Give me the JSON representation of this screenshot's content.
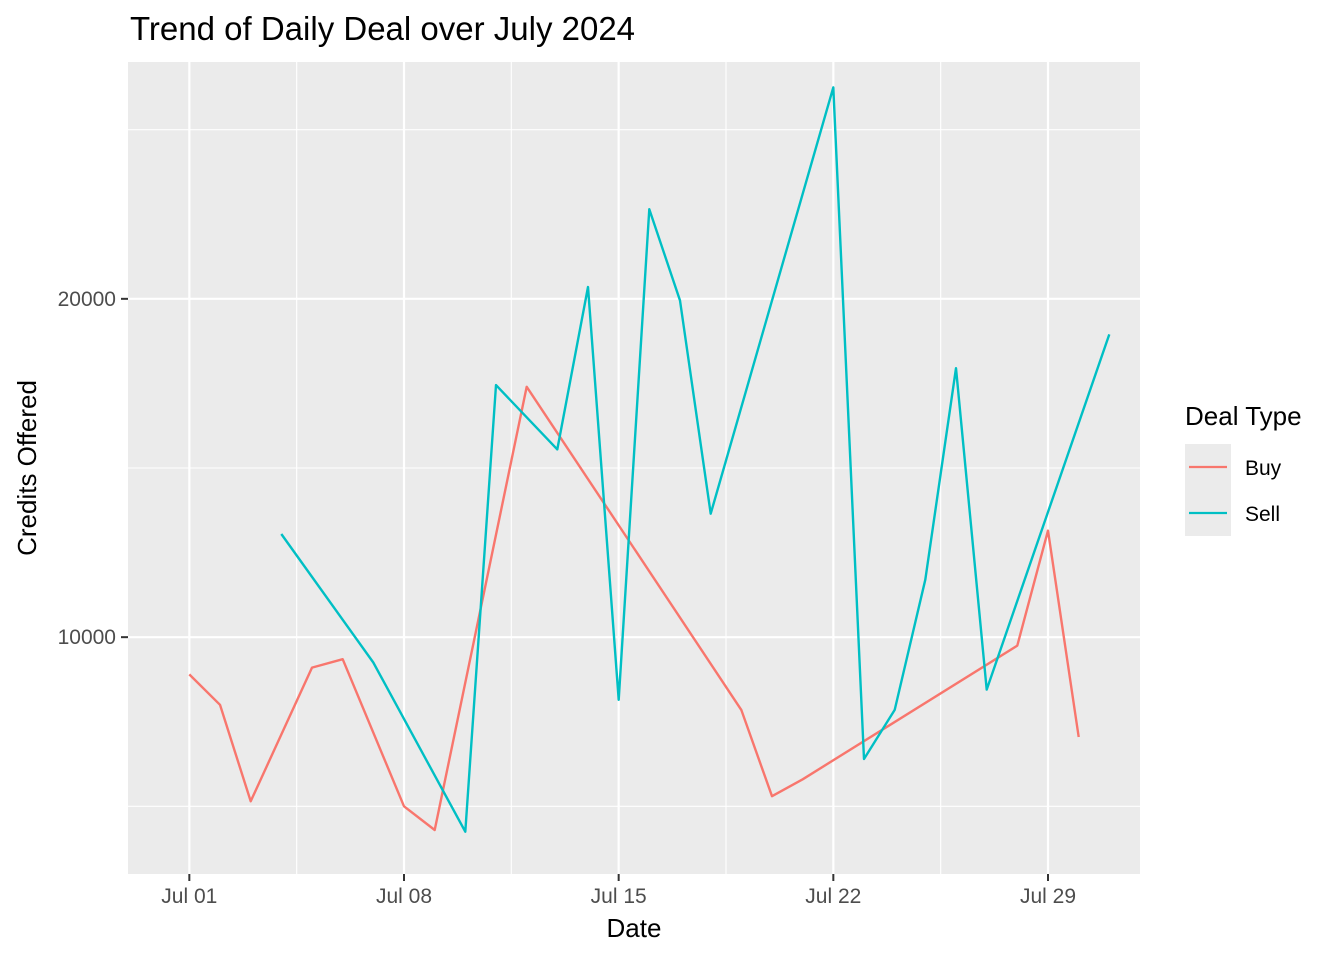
{
  "chart_data": {
    "type": "line",
    "title": "Trend of Daily Deal over July 2024",
    "xlabel": "Date",
    "ylabel": "Credits Offered",
    "x_ticks": [
      {
        "date": "2024-07-01",
        "label": "Jul 01"
      },
      {
        "date": "2024-07-08",
        "label": "Jul 08"
      },
      {
        "date": "2024-07-15",
        "label": "Jul 15"
      },
      {
        "date": "2024-07-22",
        "label": "Jul 22"
      },
      {
        "date": "2024-07-29",
        "label": "Jul 29"
      }
    ],
    "y_ticks": [
      10000,
      20000
    ],
    "xlim": [
      "2024-06-29",
      "2024-08-01"
    ],
    "ylim": [
      3000,
      27000
    ],
    "grid": true,
    "legend": {
      "title": "Deal Type",
      "position": "right"
    },
    "series": [
      {
        "name": "Buy",
        "color": "#F8766D",
        "points": [
          {
            "x": "2024-07-01",
            "y": 8900
          },
          {
            "x": "2024-07-02",
            "y": 8000
          },
          {
            "x": "2024-07-03",
            "y": 5150
          },
          {
            "x": "2024-07-05",
            "y": 9100
          },
          {
            "x": "2024-07-06",
            "y": 9350
          },
          {
            "x": "2024-07-08",
            "y": 5000
          },
          {
            "x": "2024-07-09",
            "y": 4300
          },
          {
            "x": "2024-07-12",
            "y": 17400
          },
          {
            "x": "2024-07-19",
            "y": 7850
          },
          {
            "x": "2024-07-20",
            "y": 5300
          },
          {
            "x": "2024-07-21",
            "y": 5800
          },
          {
            "x": "2024-07-28",
            "y": 9750
          },
          {
            "x": "2024-07-29",
            "y": 13150
          },
          {
            "x": "2024-07-30",
            "y": 7050
          }
        ]
      },
      {
        "name": "Sell",
        "color": "#00BFC4",
        "points": [
          {
            "x": "2024-07-04",
            "y": 13050
          },
          {
            "x": "2024-07-07",
            "y": 9250
          },
          {
            "x": "2024-07-10",
            "y": 4250
          },
          {
            "x": "2024-07-11",
            "y": 17450
          },
          {
            "x": "2024-07-13",
            "y": 15550
          },
          {
            "x": "2024-07-14",
            "y": 20350
          },
          {
            "x": "2024-07-15",
            "y": 8150
          },
          {
            "x": "2024-07-16",
            "y": 22650
          },
          {
            "x": "2024-07-17",
            "y": 19950
          },
          {
            "x": "2024-07-18",
            "y": 13650
          },
          {
            "x": "2024-07-22",
            "y": 26250
          },
          {
            "x": "2024-07-23",
            "y": 6400
          },
          {
            "x": "2024-07-24",
            "y": 7850
          },
          {
            "x": "2024-07-25",
            "y": 11700
          },
          {
            "x": "2024-07-26",
            "y": 17950
          },
          {
            "x": "2024-07-27",
            "y": 8450
          },
          {
            "x": "2024-07-31",
            "y": 18950
          }
        ]
      }
    ]
  }
}
